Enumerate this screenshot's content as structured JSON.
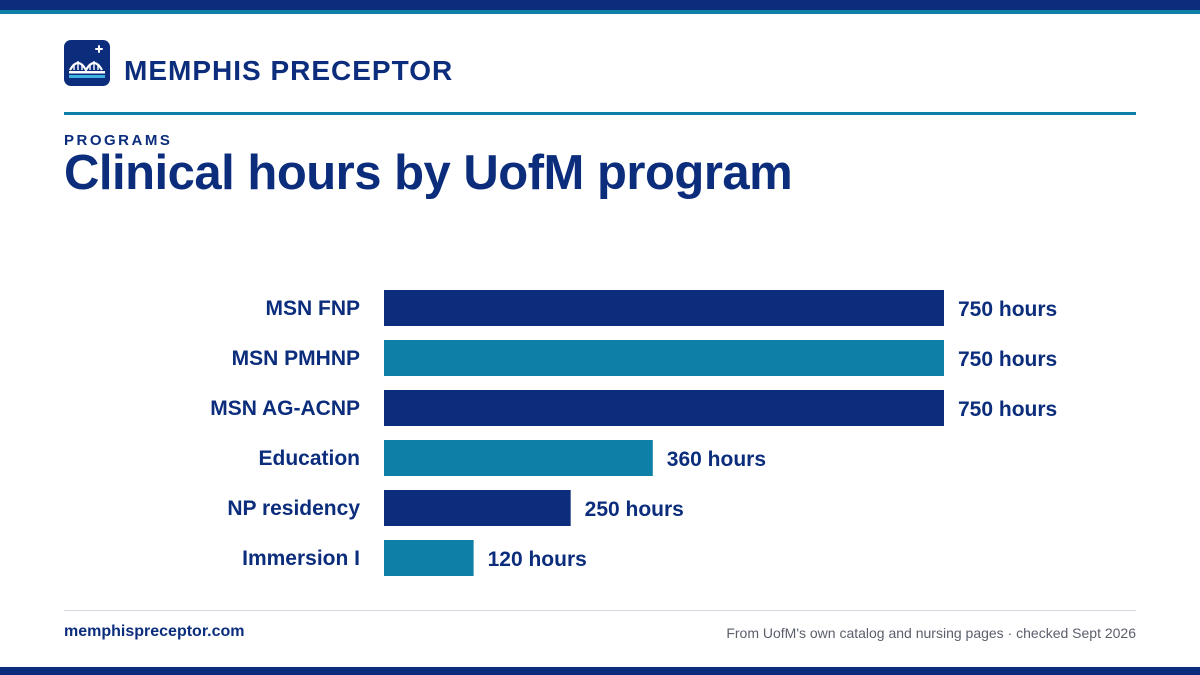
{
  "brand": {
    "name": "MEMPHIS PRECEPTOR",
    "logo_icon": "bridge-cross-icon"
  },
  "header": {
    "eyebrow": "PROGRAMS",
    "title": "Clinical hours by UofM program"
  },
  "colors": {
    "navy": "#0b2d7c",
    "teal": "#0e7fa6"
  },
  "chart_data": {
    "type": "bar",
    "orientation": "horizontal",
    "title": "Clinical hours by UofM program",
    "xlabel": "",
    "ylabel": "",
    "categories": [
      "MSN FNP",
      "MSN PMHNP",
      "MSN AG-ACNP",
      "Education",
      "NP residency",
      "Immersion I"
    ],
    "values": [
      750,
      750,
      750,
      360,
      250,
      120
    ],
    "data_labels": [
      "750 hours",
      "750 hours",
      "750 hours",
      "360 hours",
      "250 hours",
      "120 hours"
    ],
    "bar_colors": [
      "#0b2d7c",
      "#0e7fa6",
      "#0b2d7c",
      "#0e7fa6",
      "#0b2d7c",
      "#0e7fa6"
    ],
    "xlim": [
      0,
      750
    ],
    "grid": false,
    "legend": "none"
  },
  "footer": {
    "url": "memphispreceptor.com",
    "source": "From UofM's own catalog and nursing pages · checked Sept 2026"
  }
}
